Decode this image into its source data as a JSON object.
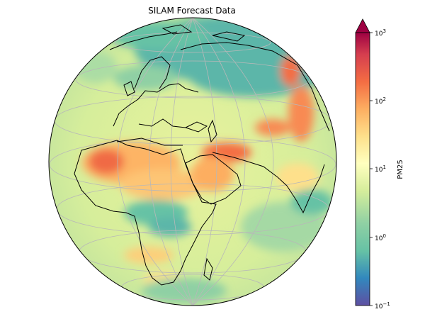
{
  "figure": {
    "title": "SILAM Forecast Data",
    "projection": "orthographic globe centered on Africa / Middle East",
    "regions": [
      "Europe",
      "Africa",
      "Arabian Peninsula",
      "South Asia",
      "Siberia"
    ]
  },
  "colorbar": {
    "label": "PM25",
    "scale": "log",
    "range": [
      0.1,
      1000
    ],
    "extend": "max",
    "ticks": [
      {
        "base": "10",
        "exp": "3"
      },
      {
        "base": "10",
        "exp": "2"
      },
      {
        "base": "10",
        "exp": "1"
      },
      {
        "base": "10",
        "exp": "0"
      },
      {
        "base": "10",
        "exp": "−1"
      }
    ],
    "palette": [
      "#5e4fa2",
      "#3288bd",
      "#66c2a5",
      "#abdda4",
      "#e6f598",
      "#ffffbf",
      "#fee08b",
      "#fdae61",
      "#f46d43",
      "#d53e4f",
      "#9e0142"
    ]
  }
}
